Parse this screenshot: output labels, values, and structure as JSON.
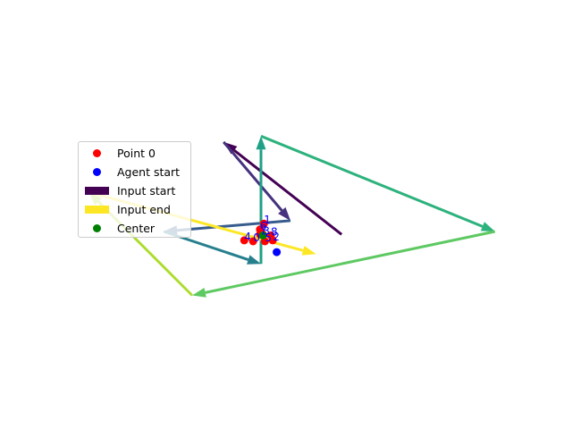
{
  "chart_data": {
    "type": "scatter",
    "title": "",
    "xlabel": "",
    "ylabel": "",
    "axes_visible": false,
    "grid": false,
    "legend_position": "center-left",
    "legend": [
      {
        "label": "Point 0",
        "marker": "circle",
        "color": "#ff0000"
      },
      {
        "label": "Agent start",
        "marker": "circle",
        "color": "#0000ff"
      },
      {
        "label": "Input start",
        "marker": "patch",
        "color": "#440154"
      },
      {
        "label": "Input end",
        "marker": "patch",
        "color": "#fde725"
      },
      {
        "label": "Center",
        "marker": "circle",
        "color": "#008000"
      }
    ],
    "points": [
      {
        "label": "1",
        "x": 3,
        "y": 8,
        "color": "#ff0000"
      },
      {
        "label": "6",
        "x": -1,
        "y": 2,
        "color": "#ff0000"
      },
      {
        "label": "7",
        "x": -1,
        "y": -3,
        "color": "#ff0000"
      },
      {
        "label": "3",
        "x": 2,
        "y": -3,
        "color": "#ff0000"
      },
      {
        "label": "8",
        "x": 10,
        "y": -4,
        "color": "#ff0000"
      },
      {
        "label": "5",
        "x": 4,
        "y": -10,
        "color": "#ff0000"
      },
      {
        "label": "2",
        "x": 12,
        "y": -9,
        "color": "#ff0000"
      },
      {
        "label": "4",
        "x": -17,
        "y": -9,
        "color": "#ff0000"
      },
      {
        "label": "0",
        "x": -8,
        "y": -10,
        "color": "#ff0000"
      }
    ],
    "agent_start": {
      "x": 16,
      "y": -21,
      "color": "#0000ff"
    },
    "center": {
      "x": 2,
      "y": -4,
      "color": "#008000"
    },
    "arrows": [
      {
        "x1": 82,
        "y1": -3,
        "x2": -38,
        "y2": 91,
        "color": "#440154"
      },
      {
        "x1": -38,
        "y1": 91,
        "x2": 30,
        "y2": 11,
        "color": "#46327e"
      },
      {
        "x1": 30,
        "y1": 11,
        "x2": -99,
        "y2": 0,
        "color": "#365c8d"
      },
      {
        "x1": -99,
        "y1": 0,
        "x2": 0,
        "y2": -33,
        "color": "#277f8e"
      },
      {
        "x1": 0,
        "y1": -33,
        "x2": 0,
        "y2": 97,
        "color": "#1fa187"
      },
      {
        "x1": 0,
        "y1": 97,
        "x2": 238,
        "y2": 0,
        "color": "#2db27d"
      },
      {
        "x1": 238,
        "y1": 0,
        "x2": -70,
        "y2": -65,
        "color": "#5ec962"
      },
      {
        "x1": -70,
        "y1": -65,
        "x2": -175,
        "y2": 40,
        "color": "#addc30"
      },
      {
        "x1": -175,
        "y1": 40,
        "x2": 56,
        "y2": -23,
        "color": "#fde725"
      }
    ]
  }
}
